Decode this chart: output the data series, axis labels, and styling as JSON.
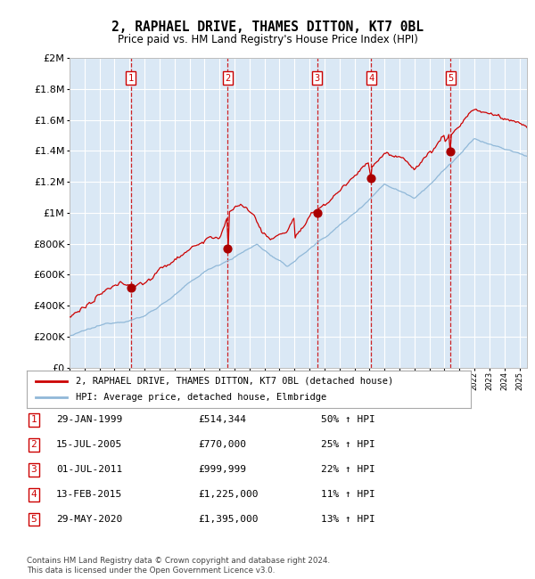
{
  "title": "2, RAPHAEL DRIVE, THAMES DITTON, KT7 0BL",
  "subtitle": "Price paid vs. HM Land Registry's House Price Index (HPI)",
  "hpi_line_color": "#90b8d8",
  "price_line_color": "#cc0000",
  "marker_color": "#aa0000",
  "plot_bg_color": "#dae8f5",
  "grid_color": "#ffffff",
  "legend_label_price": "2, RAPHAEL DRIVE, THAMES DITTON, KT7 0BL (detached house)",
  "legend_label_hpi": "HPI: Average price, detached house, Elmbridge",
  "transactions": [
    {
      "num": 1,
      "date": "29-JAN-1999",
      "price": 514344,
      "hpi_pct": "50%",
      "x_year": 1999.08
    },
    {
      "num": 2,
      "date": "15-JUL-2005",
      "price": 770000,
      "hpi_pct": "25%",
      "x_year": 2005.54
    },
    {
      "num": 3,
      "date": "01-JUL-2011",
      "price": 999999,
      "hpi_pct": "22%",
      "x_year": 2011.5
    },
    {
      "num": 4,
      "date": "13-FEB-2015",
      "price": 1225000,
      "hpi_pct": "11%",
      "x_year": 2015.12
    },
    {
      "num": 5,
      "date": "29-MAY-2020",
      "price": 1395000,
      "hpi_pct": "13%",
      "x_year": 2020.41
    }
  ],
  "table_rows": [
    [
      "1",
      "29-JAN-1999",
      "£514,344",
      "50% ↑ HPI"
    ],
    [
      "2",
      "15-JUL-2005",
      "£770,000",
      "25% ↑ HPI"
    ],
    [
      "3",
      "01-JUL-2011",
      "£999,999",
      "22% ↑ HPI"
    ],
    [
      "4",
      "13-FEB-2015",
      "£1,225,000",
      "11% ↑ HPI"
    ],
    [
      "5",
      "29-MAY-2020",
      "£1,395,000",
      "13% ↑ HPI"
    ]
  ],
  "footer": "Contains HM Land Registry data © Crown copyright and database right 2024.\nThis data is licensed under the Open Government Licence v3.0.",
  "yticks": [
    0,
    200000,
    400000,
    600000,
    800000,
    1000000,
    1200000,
    1400000,
    1600000,
    1800000,
    2000000
  ],
  "ylabels": [
    "£0",
    "£200K",
    "£400K",
    "£600K",
    "£800K",
    "£1M",
    "£1.2M",
    "£1.4M",
    "£1.6M",
    "£1.8M",
    "£2M"
  ],
  "xlim_start": 1995.0,
  "xlim_end": 2025.5,
  "ylim_max": 2000000
}
